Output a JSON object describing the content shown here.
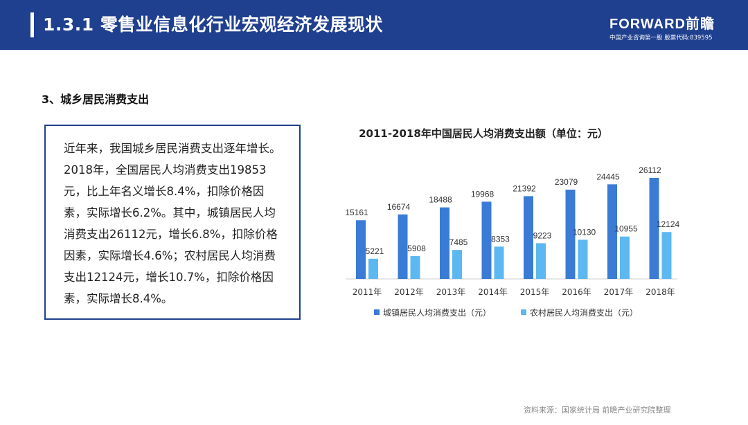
{
  "header": {
    "title": "1.3.1  零售业信息化行业宏观经济发展现状",
    "brand_name": "FORWARD前瞻",
    "brand_sub": "中国产业咨询第一股 股票代码:839595"
  },
  "section_title": "3、城乡居民消费支出",
  "summary_text": "近年来，我国城乡居民消费支出逐年增长。2018年，全国居民人均消费支出19853元，比上年名义增长8.4%，扣除价格因素，实际增长6.2%。其中，城镇居民人均消费支出26112元，增长6.8%，扣除价格因素，实际增长4.6%；农村居民人均消费支出12124元，增长10.7%，扣除价格因素，实际增长8.4%。",
  "source": "资料来源：国家统计局 前瞻产业研究院整理",
  "colors": {
    "header": "#1f3f8f",
    "urban": "#3a7bd5",
    "rural": "#5cb8f0"
  },
  "chart_data": {
    "type": "bar",
    "title": "2011-2018年中国居民人均消费支出额（单位：元）",
    "categories": [
      "2011年",
      "2012年",
      "2013年",
      "2014年",
      "2015年",
      "2016年",
      "2017年",
      "2018年"
    ],
    "series": [
      {
        "name": "城镇居民人均消费支出（元）",
        "color": "#3a7bd5",
        "values": [
          15161,
          16674,
          18488,
          19968,
          21392,
          23079,
          24445,
          26112
        ]
      },
      {
        "name": "农村居民人均消费支出（元）",
        "color": "#5cb8f0",
        "values": [
          5221,
          5908,
          7485,
          8353,
          9223,
          10130,
          10955,
          12124
        ]
      }
    ],
    "ylim": [
      0,
      26112
    ],
    "grid": false,
    "legend_position": "bottom"
  }
}
